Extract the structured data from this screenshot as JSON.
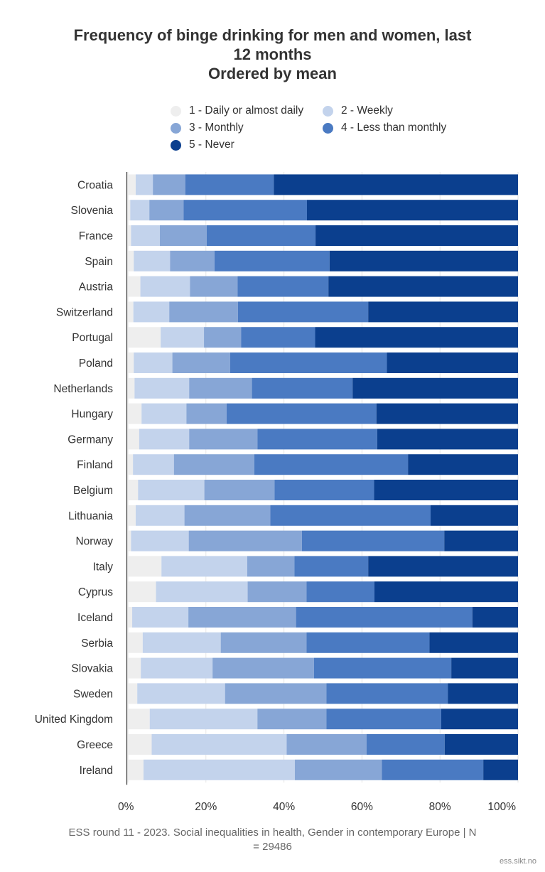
{
  "title_lines": [
    "Frequency of binge drinking for men and women, last",
    "12 months",
    "Ordered by mean"
  ],
  "footer_lines": [
    "ESS round 11 - 2023. Social inequalities in health, Gender in contemporary Europe | N",
    "= 29486"
  ],
  "credit": "ess.sikt.no",
  "chart_data": {
    "type": "bar",
    "orientation": "horizontal",
    "stacked": "percent",
    "title": "Frequency of binge drinking for men and women, last 12 months Ordered by mean",
    "categories": [
      "Croatia",
      "Slovenia",
      "France",
      "Spain",
      "Austria",
      "Switzerland",
      "Portugal",
      "Poland",
      "Netherlands",
      "Hungary",
      "Germany",
      "Finland",
      "Belgium",
      "Lithuania",
      "Norway",
      "Italy",
      "Cyprus",
      "Iceland",
      "Serbia",
      "Slovakia",
      "Sweden",
      "United Kingdom",
      "Greece",
      "Ireland"
    ],
    "xlim": [
      0,
      100
    ],
    "x_ticks": [
      "0%",
      "20%",
      "40%",
      "60%",
      "80%",
      "100%"
    ],
    "grid": true,
    "legend_position": "top",
    "series": [
      {
        "name": "1 - Daily or almost daily",
        "color": "#eeeeee",
        "values": [
          2.0,
          0.6,
          0.8,
          1.5,
          3.2,
          1.4,
          8.4,
          1.5,
          1.7,
          3.5,
          2.9,
          1.3,
          2.6,
          2.0,
          0.8,
          8.6,
          7.2,
          1.1,
          3.8,
          3.3,
          2.4,
          5.6,
          6.1,
          4.0
        ]
      },
      {
        "name": "2 - Weekly",
        "color": "#c3d3ec",
        "values": [
          4.4,
          4.9,
          7.4,
          9.3,
          12.7,
          9.2,
          11.1,
          9.9,
          14.0,
          11.5,
          12.8,
          10.5,
          17.0,
          12.5,
          14.8,
          22.0,
          23.5,
          14.4,
          20.0,
          18.4,
          22.5,
          27.6,
          34.6,
          38.8
        ]
      },
      {
        "name": "3 - Monthly",
        "color": "#87a6d6",
        "values": [
          8.3,
          8.8,
          12.0,
          11.4,
          12.2,
          17.6,
          9.5,
          14.8,
          16.1,
          10.3,
          17.5,
          20.6,
          18.0,
          22.0,
          29.0,
          12.1,
          15.1,
          27.6,
          22.0,
          26.0,
          26.0,
          17.7,
          20.5,
          22.3
        ]
      },
      {
        "name": "4 - Less than monthly",
        "color": "#4a7ac2",
        "values": [
          22.7,
          31.6,
          27.9,
          29.5,
          23.3,
          33.4,
          19.0,
          40.2,
          25.8,
          38.4,
          30.7,
          39.4,
          25.5,
          41.1,
          36.5,
          18.9,
          17.4,
          45.2,
          31.5,
          35.2,
          31.1,
          29.4,
          20.0,
          26.0
        ]
      },
      {
        "name": "5 - Never",
        "color": "#0b3f8e",
        "values": [
          62.6,
          54.1,
          51.9,
          48.3,
          48.6,
          38.4,
          52.0,
          33.6,
          42.4,
          36.3,
          36.1,
          28.2,
          36.9,
          22.4,
          18.9,
          38.4,
          36.8,
          11.7,
          22.7,
          17.1,
          18.0,
          19.7,
          18.8,
          8.9
        ]
      }
    ]
  }
}
